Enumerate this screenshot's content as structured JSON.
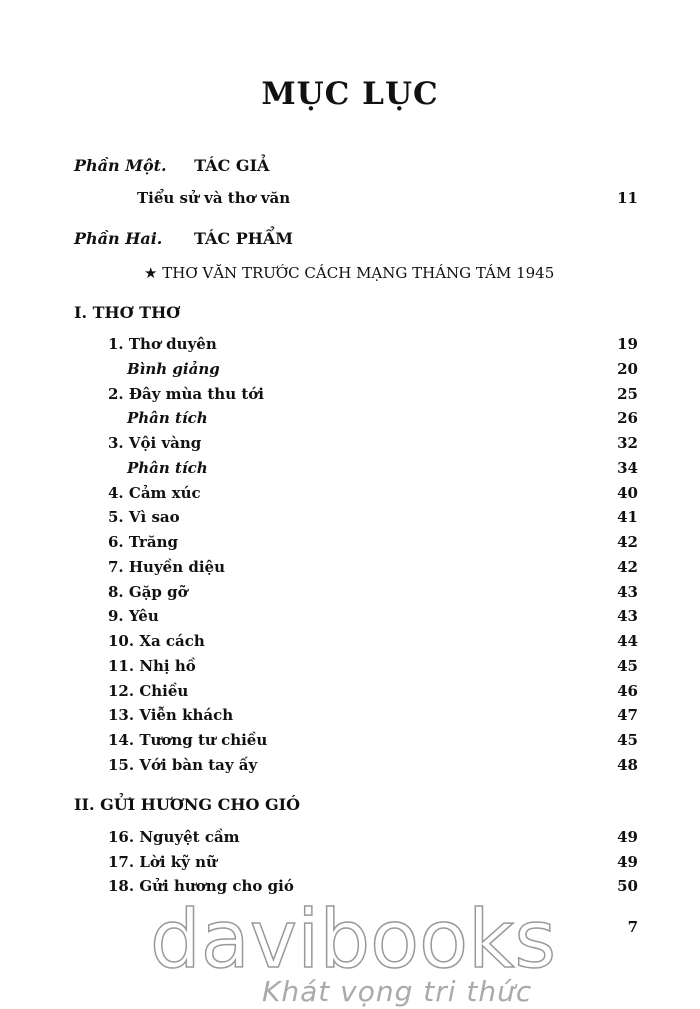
{
  "title": "MỤC LỤC",
  "part1": {
    "label": "Phần Một.",
    "heading": "TÁC GIẢ",
    "entry": "Tiểu sử và thơ văn",
    "page": "11"
  },
  "part2": {
    "label": "Phần Hai.",
    "heading": "TÁC PHẨM",
    "subheading": "THƠ VĂN TRƯỚC CÁCH MẠNG THÁNG TÁM 1945"
  },
  "section1": {
    "title": "I. THƠ THƠ",
    "entries": [
      {
        "label": "1. Thơ duyên",
        "page": "19"
      },
      {
        "label": "Bình giảng",
        "page": "20",
        "italic": true
      },
      {
        "label": "2. Đây mùa thu tới",
        "page": "25"
      },
      {
        "label": "Phân tích",
        "page": "26",
        "italic": true
      },
      {
        "label": "3. Vội vàng",
        "page": "32"
      },
      {
        "label": "Phân tích",
        "page": "34",
        "italic": true
      },
      {
        "label": "4. Cảm xúc",
        "page": "40"
      },
      {
        "label": "5. Vì sao",
        "page": "41"
      },
      {
        "label": "6. Trăng",
        "page": "42"
      },
      {
        "label": "7. Huyền diệu",
        "page": "42"
      },
      {
        "label": "8. Gặp gỡ",
        "page": "43"
      },
      {
        "label": "9. Yêu",
        "page": "43"
      },
      {
        "label": "10. Xa cách",
        "page": "44"
      },
      {
        "label": "11. Nhị hồ",
        "page": "45"
      },
      {
        "label": "12. Chiều",
        "page": "46"
      },
      {
        "label": "13. Viễn khách",
        "page": "47"
      },
      {
        "label": "14. Tương tư chiều",
        "page": "45"
      },
      {
        "label": "15. Với bàn tay ấy",
        "page": "48"
      }
    ]
  },
  "section2": {
    "title": "II. GỬI HƯƠNG CHO GIÓ",
    "entries": [
      {
        "label": "16. Nguyệt cầm",
        "page": "49"
      },
      {
        "label": "17. Lời kỹ nữ",
        "page": "49"
      },
      {
        "label": "18. Gửi hương cho gió",
        "page": "50"
      }
    ]
  },
  "page_number": "7",
  "watermark": {
    "brand": "davibooks",
    "slogan": "Khát vọng tri thức"
  }
}
